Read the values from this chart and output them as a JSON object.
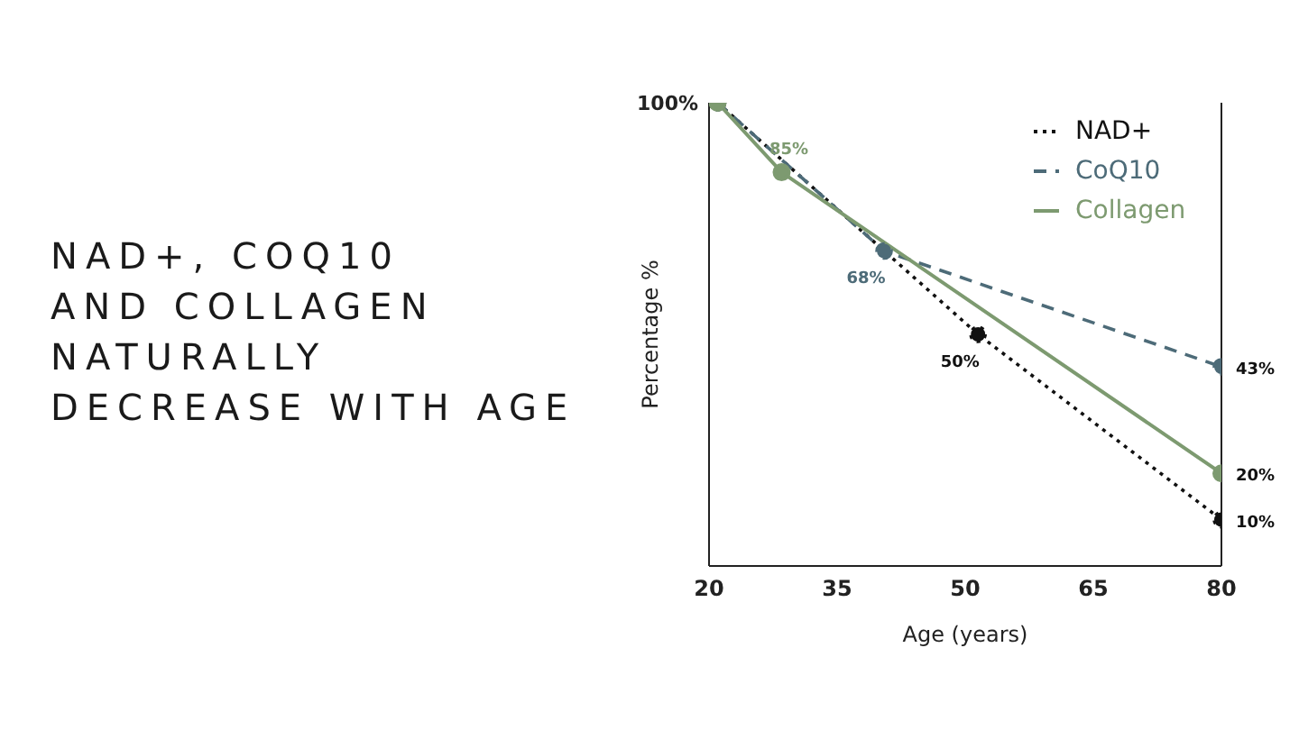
{
  "chart_data": {
    "type": "line",
    "title": "NAD+, COQ10\nAND COLLAGEN\nNATURALLY\nDECREASE WITH AGE",
    "xlabel": "Age (years)",
    "ylabel": "Percentage %",
    "xlim": [
      20,
      80
    ],
    "xticks": [
      20,
      35,
      50,
      65,
      80
    ],
    "annotations": [
      "100%"
    ],
    "legend": "top right",
    "marker": "circle",
    "ref_lines": [
      {
        "axis": "x",
        "value": 80,
        "color": "#222222"
      }
    ],
    "series": [
      {
        "name": "NAD+",
        "color": "#111111",
        "line_style": "dotted",
        "x": [
          21,
          51.5,
          80
        ],
        "values": [
          100,
          50,
          10
        ],
        "value_labels": [
          null,
          "50%",
          "10%"
        ]
      },
      {
        "name": "CoQ10",
        "color": "#4d6b78",
        "line_style": "dashed",
        "x": [
          21,
          40.5,
          80
        ],
        "values": [
          100,
          68,
          43
        ],
        "value_labels": [
          null,
          "68%",
          "43%"
        ]
      },
      {
        "name": "Collagen",
        "color": "#7d9a70",
        "line_style": "solid",
        "x": [
          21,
          28.5,
          80
        ],
        "values": [
          100,
          85,
          20
        ],
        "value_labels": [
          null,
          "85%",
          "20%"
        ]
      }
    ]
  }
}
